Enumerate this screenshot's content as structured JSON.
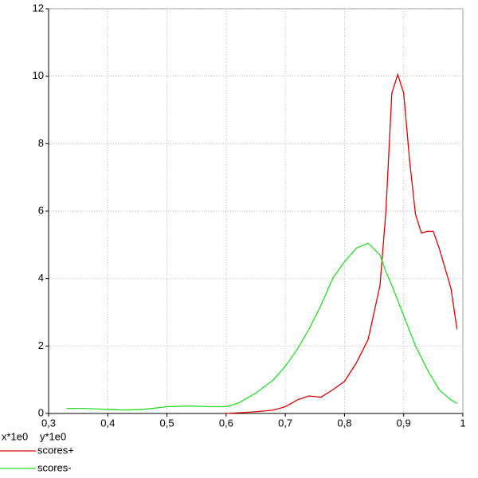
{
  "chart_data": {
    "type": "line",
    "x_label": "x*1e0",
    "y_label": "y*1e0",
    "xlim": [
      0.3,
      1.0
    ],
    "xticks": [
      {
        "value": 0.3,
        "label": "0,3"
      },
      {
        "value": 0.4,
        "label": "0,4"
      },
      {
        "value": 0.5,
        "label": "0,5"
      },
      {
        "value": 0.6,
        "label": "0,6"
      },
      {
        "value": 0.7,
        "label": "0,7"
      },
      {
        "value": 0.8,
        "label": "0,8"
      },
      {
        "value": 0.9,
        "label": "0,9"
      },
      {
        "value": 1.0,
        "label": "1"
      }
    ],
    "ylim": [
      0,
      12
    ],
    "yticks": [
      0,
      2,
      4,
      6,
      8,
      10,
      12
    ],
    "grid": true,
    "series": [
      {
        "name": "scores+",
        "color": "#e00000",
        "x": [
          0.6,
          0.65,
          0.68,
          0.7,
          0.72,
          0.74,
          0.76,
          0.78,
          0.8,
          0.82,
          0.84,
          0.86,
          0.87,
          0.88,
          0.89,
          0.9,
          0.91,
          0.92,
          0.93,
          0.94,
          0.95,
          0.96,
          0.98,
          0.99
        ],
        "values": [
          0,
          0.05,
          0.1,
          0.2,
          0.4,
          0.52,
          0.48,
          0.7,
          0.95,
          1.5,
          2.2,
          3.8,
          6,
          9.5,
          10.05,
          9.5,
          7.5,
          5.9,
          5.35,
          5.4,
          5.4,
          4.9,
          3.7,
          2.5
        ]
      },
      {
        "name": "scores-",
        "color": "#22dd22",
        "x": [
          0.33,
          0.36,
          0.4,
          0.43,
          0.46,
          0.5,
          0.54,
          0.57,
          0.6,
          0.62,
          0.65,
          0.68,
          0.7,
          0.72,
          0.74,
          0.76,
          0.78,
          0.8,
          0.82,
          0.84,
          0.86,
          0.87,
          0.88,
          0.9,
          0.92,
          0.94,
          0.96,
          0.98,
          0.99
        ],
        "values": [
          0.15,
          0.15,
          0.12,
          0.1,
          0.12,
          0.2,
          0.22,
          0.2,
          0.2,
          0.3,
          0.6,
          1.0,
          1.4,
          1.9,
          2.5,
          3.2,
          4.0,
          4.5,
          4.9,
          5.05,
          4.7,
          4.2,
          3.8,
          2.9,
          2.0,
          1.3,
          0.7,
          0.4,
          0.3
        ]
      }
    ]
  }
}
